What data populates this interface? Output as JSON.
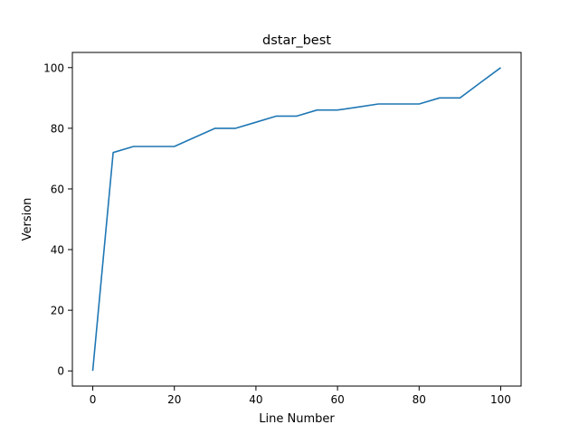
{
  "chart_data": {
    "type": "line",
    "title": "dstar_best",
    "xlabel": "Line Number",
    "ylabel": "Version",
    "xlim": [
      -5,
      105
    ],
    "ylim": [
      -5,
      105
    ],
    "xticks": [
      0,
      20,
      40,
      60,
      80,
      100
    ],
    "yticks": [
      0,
      20,
      40,
      60,
      80,
      100
    ],
    "grid": false,
    "series": [
      {
        "color": "#1f77b4",
        "x": [
          0,
          5,
          10,
          15,
          20,
          25,
          30,
          35,
          40,
          45,
          50,
          55,
          60,
          65,
          70,
          75,
          80,
          85,
          90,
          95,
          100
        ],
        "y": [
          0,
          72,
          74,
          74,
          74,
          77,
          80,
          80,
          82,
          84,
          84,
          86,
          86,
          87,
          88,
          88,
          88,
          90,
          90,
          95,
          100
        ]
      }
    ]
  }
}
